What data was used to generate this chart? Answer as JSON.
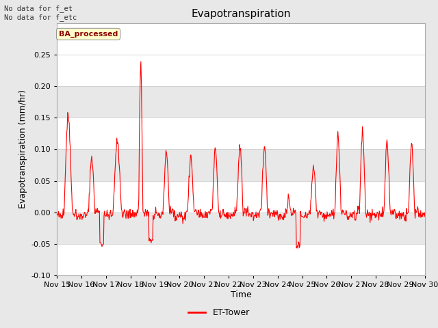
{
  "title": "Evapotranspiration",
  "xlabel": "Time",
  "ylabel": "Evapotranspiration (mm/hr)",
  "ylim": [
    -0.1,
    0.3
  ],
  "yticks": [
    -0.1,
    -0.05,
    0.0,
    0.05,
    0.1,
    0.15,
    0.2,
    0.25
  ],
  "xlim": [
    0,
    360
  ],
  "xtick_labels": [
    "Nov 15",
    "Nov 16",
    "Nov 17",
    "Nov 18",
    "Nov 19",
    "Nov 20",
    "Nov 21",
    "Nov 22",
    "Nov 23",
    "Nov 24",
    "Nov 25",
    "Nov 26",
    "Nov 27",
    "Nov 28",
    "Nov 29",
    "Nov 30"
  ],
  "xtick_positions": [
    0,
    24,
    48,
    72,
    96,
    120,
    144,
    168,
    192,
    216,
    240,
    264,
    288,
    312,
    336,
    360
  ],
  "line_color": "#ff0000",
  "line_width": 0.8,
  "bg_color": "#e8e8e8",
  "plot_bg_color": "#ffffff",
  "grid_color_dark": "#d8d8d8",
  "grid_color_light": "#ffffff",
  "annotation_text": "No data for f_et\nNo data for f_etc",
  "box_label": "BA_processed",
  "legend_label": "ET-Tower",
  "title_fontsize": 11,
  "axis_fontsize": 9,
  "tick_fontsize": 8,
  "band_colors": [
    "#ffffff",
    "#e8e8e8"
  ]
}
